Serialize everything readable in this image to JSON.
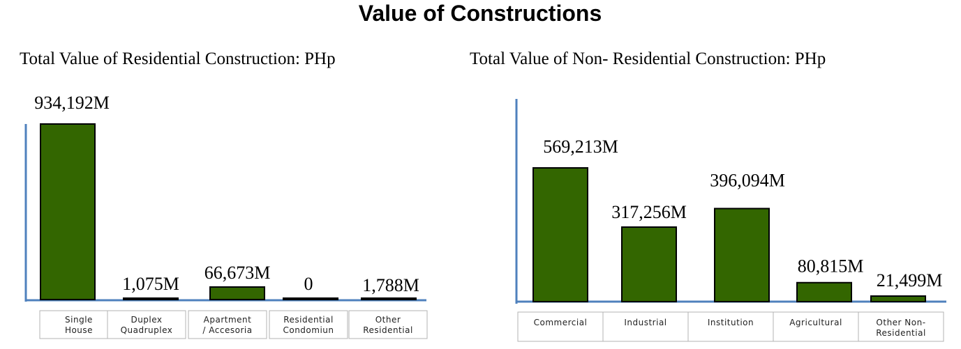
{
  "page": {
    "title": "Value of Constructions"
  },
  "chart_data": [
    {
      "type": "bar",
      "title": "Total Value of Residential Construction: PHp",
      "categories": [
        [
          "Single",
          "House"
        ],
        [
          "Duplex",
          "Quadruplex"
        ],
        [
          "Apartment",
          "/ Accesoria"
        ],
        [
          "Residential",
          "Condomiun"
        ],
        [
          "Other",
          "Residential"
        ]
      ],
      "values": [
        934192,
        1075,
        66673,
        0,
        1788
      ],
      "value_labels": [
        "934,192M",
        "1,075M",
        "66,673M",
        "0",
        "1,788M"
      ],
      "unit": "M PHp",
      "bar_color": "#336600",
      "axis_color": "#4f81bd"
    },
    {
      "type": "bar",
      "title": "Total Value of Non- Residential Construction: PHp",
      "categories": [
        [
          "Commercial"
        ],
        [
          "Industrial"
        ],
        [
          "Institution"
        ],
        [
          "Agricultural"
        ],
        [
          "Other Non-",
          "Residential"
        ]
      ],
      "values": [
        569213,
        317256,
        396094,
        80815,
        21499
      ],
      "value_labels": [
        "569,213M",
        "317,256M",
        "396,094M",
        "80,815M",
        "21,499M"
      ],
      "unit": "M PHp",
      "bar_color": "#336600",
      "axis_color": "#4f81bd"
    }
  ]
}
